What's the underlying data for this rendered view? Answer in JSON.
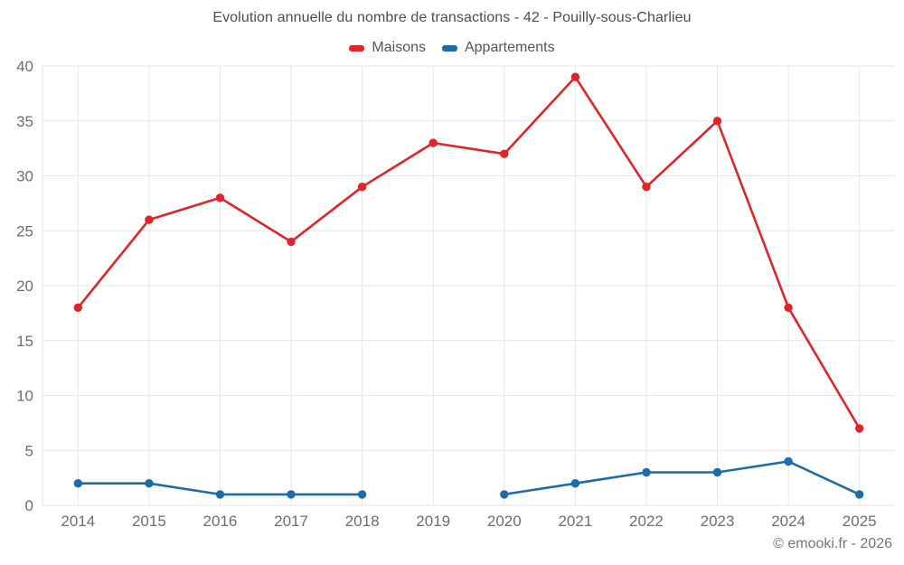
{
  "header": {
    "title": "Evolution annuelle du nombre de transactions - 42 - Pouilly-sous-Charlieu"
  },
  "legend": {
    "items": [
      {
        "label": "Maisons",
        "color": "#e0252a"
      },
      {
        "label": "Appartements",
        "color": "#1b6ca8"
      }
    ]
  },
  "footer": {
    "copyright": "© emooki.fr - 2026"
  },
  "colors": {
    "grid": "#e6e6e6",
    "axis_border": "#e3e3e3",
    "tick_label": "#6e6e6e",
    "title_text": "#4d4d4d",
    "legend_text": "#555555",
    "background": "#ffffff",
    "maisons": "#e0252a",
    "appartements": "#1b6ca8"
  },
  "chart_data": {
    "type": "line",
    "title": "Evolution annuelle du nombre de transactions - 42 - Pouilly-sous-Charlieu",
    "categories": [
      "2014",
      "2015",
      "2016",
      "2017",
      "2018",
      "2019",
      "2020",
      "2021",
      "2022",
      "2023",
      "2024",
      "2025"
    ],
    "series": [
      {
        "name": "Maisons",
        "color": "#e0252a",
        "values": [
          18,
          26,
          28,
          24,
          29,
          33,
          32,
          39,
          29,
          35,
          18,
          7
        ]
      },
      {
        "name": "Appartements",
        "color": "#1b6ca8",
        "values": [
          2,
          2,
          1,
          1,
          1,
          null,
          1,
          2,
          3,
          3,
          4,
          1
        ]
      }
    ],
    "xlabel": "",
    "ylabel": "",
    "ylim": [
      0,
      40
    ],
    "yticks": [
      0,
      5,
      10,
      15,
      20,
      25,
      30,
      35,
      40
    ],
    "grid": true,
    "legend_position": "top"
  }
}
